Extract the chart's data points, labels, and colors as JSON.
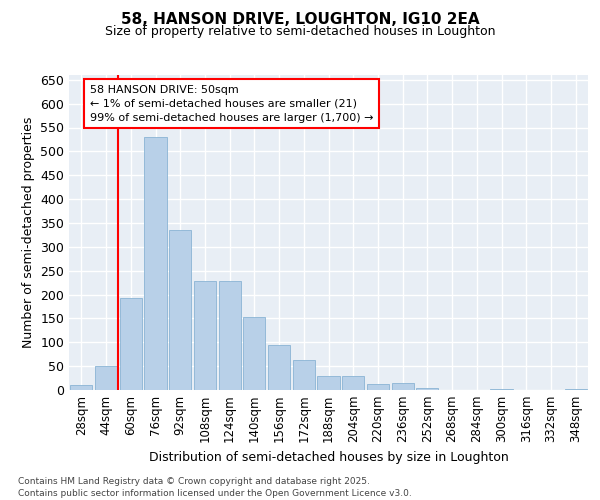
{
  "title1": "58, HANSON DRIVE, LOUGHTON, IG10 2EA",
  "title2": "Size of property relative to semi-detached houses in Loughton",
  "xlabel": "Distribution of semi-detached houses by size in Loughton",
  "ylabel": "Number of semi-detached properties",
  "footnote": "Contains HM Land Registry data © Crown copyright and database right 2025.\nContains public sector information licensed under the Open Government Licence v3.0.",
  "bar_labels": [
    "28sqm",
    "44sqm",
    "60sqm",
    "76sqm",
    "92sqm",
    "108sqm",
    "124sqm",
    "140sqm",
    "156sqm",
    "172sqm",
    "188sqm",
    "204sqm",
    "220sqm",
    "236sqm",
    "252sqm",
    "268sqm",
    "284sqm",
    "300sqm",
    "316sqm",
    "332sqm",
    "348sqm"
  ],
  "bar_values": [
    10,
    50,
    193,
    530,
    335,
    228,
    228,
    152,
    95,
    63,
    30,
    30,
    13,
    15,
    5,
    0,
    0,
    3,
    0,
    0,
    3
  ],
  "bar_color": "#b8d0e8",
  "bar_edge_color": "#8ab4d4",
  "bg_color": "#e8eef5",
  "grid_color": "#ffffff",
  "red_line_x": 1.5,
  "annotation_title": "58 HANSON DRIVE: 50sqm",
  "annotation_line1": "← 1% of semi-detached houses are smaller (21)",
  "annotation_line2": "99% of semi-detached houses are larger (1,700) →",
  "ylim_max": 660,
  "ytick_step": 50
}
